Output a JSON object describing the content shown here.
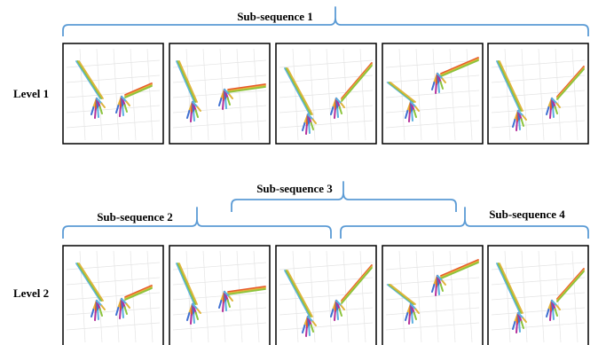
{
  "labels": {
    "level1": "Level 1",
    "level2": "Level 2",
    "sub1": "Sub-sequence 1",
    "sub2": "Sub-sequence 2",
    "sub3": "Sub-sequence 3",
    "sub4": "Sub-sequence 4"
  },
  "colors": {
    "brace": "#5b9bd5",
    "frame": "#000000",
    "bone_palette": [
      "#5bb1e0",
      "#8cc43c",
      "#e0b43c",
      "#e8582a",
      "#3d6fd1",
      "#b4309a"
    ]
  },
  "rows": [
    {
      "level_key": "level1",
      "frames": 5
    },
    {
      "level_key": "level2",
      "frames": 5
    }
  ],
  "frame_icons": [
    "hand-skeleton-pose-1",
    "hand-skeleton-pose-2",
    "hand-skeleton-pose-3",
    "hand-skeleton-pose-4",
    "hand-skeleton-pose-5"
  ]
}
